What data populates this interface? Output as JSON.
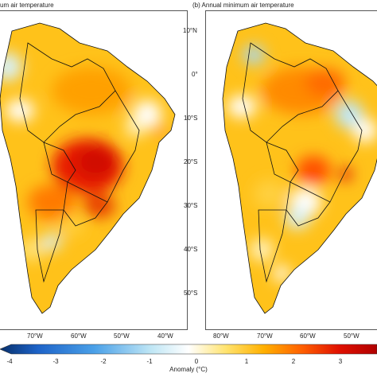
{
  "panels": [
    {
      "id": "a",
      "title": "um air temperature",
      "lon_labels": [
        "70°W",
        "60°W",
        "50°W",
        "40°W"
      ],
      "lat_labels": []
    },
    {
      "id": "b",
      "title": "(b) Annual minimum air temperature",
      "lon_labels": [
        "80°W",
        "70°W",
        "60°W",
        "50°W"
      ],
      "lat_labels": [
        "10°N",
        "0°",
        "10°S",
        "20°S",
        "30°S",
        "40°S",
        "50°S"
      ]
    }
  ],
  "colorbar": {
    "title": "Anomaly (°C)",
    "ticks": [
      "-4",
      "-3",
      "-2",
      "-1",
      "0",
      "1",
      "2",
      "3"
    ],
    "colors": [
      "#08306b",
      "#1d63c8",
      "#4aa0e8",
      "#bfe6f5",
      "#ffffff",
      "#ffe36e",
      "#ffb000",
      "#ff6000",
      "#e01000",
      "#b00000"
    ]
  }
}
